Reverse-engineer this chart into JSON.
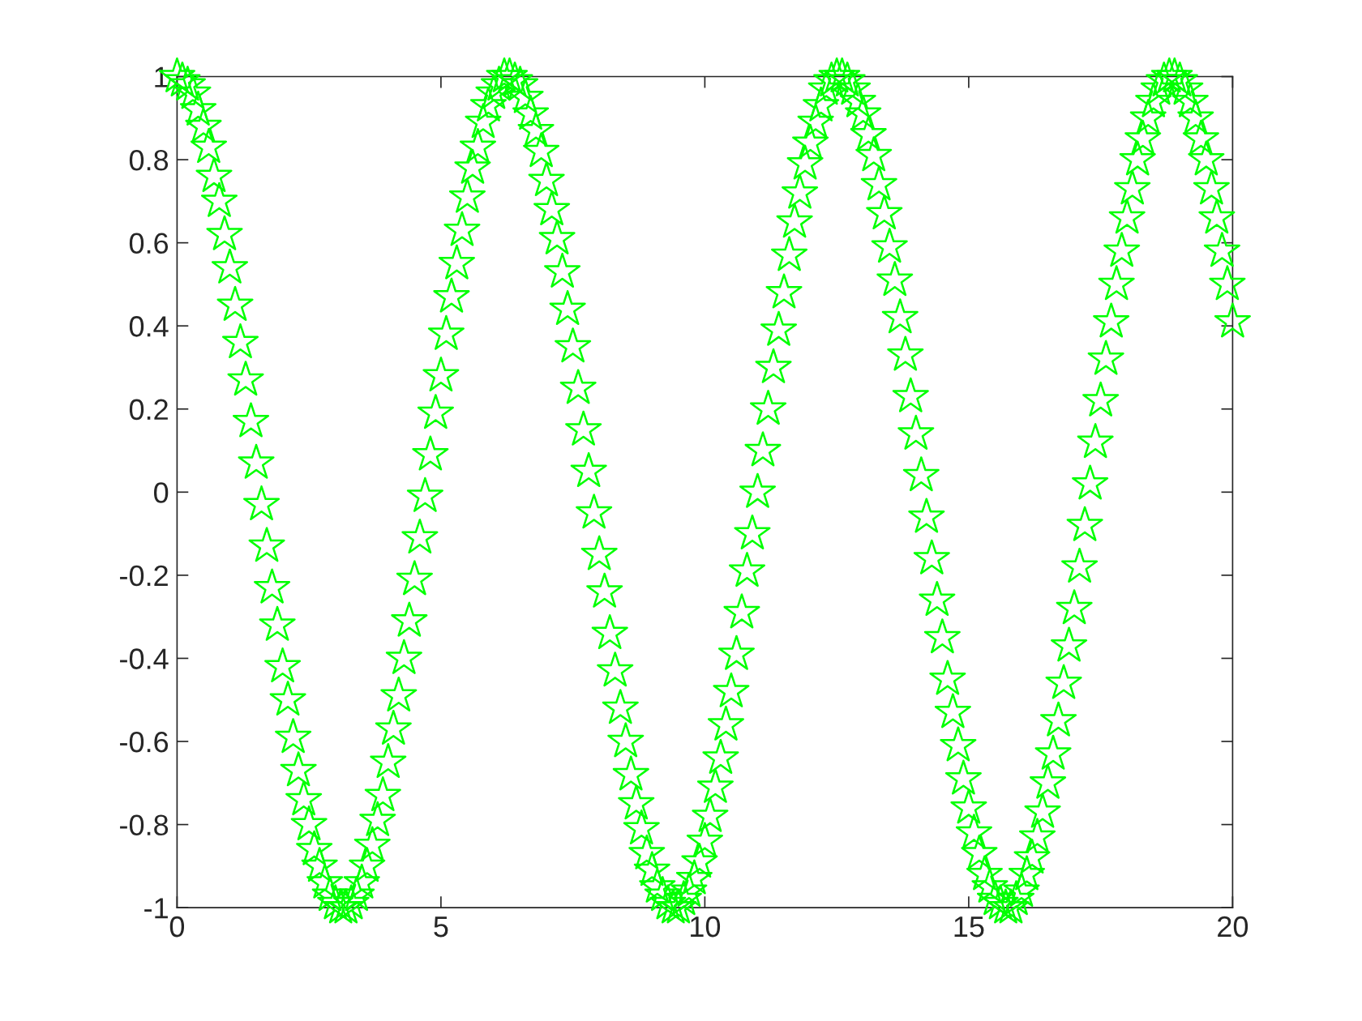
{
  "chart_data": {
    "type": "scatter",
    "marker": "star",
    "grid": false,
    "legend": false,
    "xlim": [
      0,
      20
    ],
    "xticks": [
      0,
      5,
      10,
      15,
      20
    ],
    "ylim": [
      -1,
      1
    ],
    "yticks": [
      -1,
      -0.8,
      -0.6,
      -0.4,
      -0.2,
      0,
      0.2,
      0.4,
      0.6,
      0.8,
      1
    ],
    "x": [
      0,
      0.1,
      0.2,
      0.3,
      0.4,
      0.5,
      0.6,
      0.7,
      0.8,
      0.9,
      1,
      1.1,
      1.2,
      1.3,
      1.4,
      1.5,
      1.6,
      1.7,
      1.8,
      1.9,
      2,
      2.1,
      2.2,
      2.3,
      2.4,
      2.5,
      2.6,
      2.7,
      2.8,
      2.9,
      3,
      3.1,
      3.2,
      3.3,
      3.4,
      3.5,
      3.6,
      3.7,
      3.8,
      3.9,
      4,
      4.1,
      4.2,
      4.3,
      4.4,
      4.5,
      4.6,
      4.7,
      4.8,
      4.9,
      5,
      5.1,
      5.2,
      5.3,
      5.4,
      5.5,
      5.6,
      5.7,
      5.8,
      5.9,
      6,
      6.1,
      6.2,
      6.3,
      6.4,
      6.5,
      6.6,
      6.7,
      6.8,
      6.9,
      7,
      7.1,
      7.2,
      7.3,
      7.4,
      7.5,
      7.6,
      7.7,
      7.8,
      7.9,
      8,
      8.1,
      8.2,
      8.3,
      8.4,
      8.5,
      8.6,
      8.7,
      8.8,
      8.9,
      9,
      9.1,
      9.2,
      9.3,
      9.4,
      9.5,
      9.6,
      9.7,
      9.8,
      9.9,
      10,
      10.1,
      10.2,
      10.3,
      10.4,
      10.5,
      10.6,
      10.7,
      10.8,
      10.9,
      11,
      11.1,
      11.2,
      11.3,
      11.4,
      11.5,
      11.6,
      11.7,
      11.8,
      11.9,
      12,
      12.1,
      12.2,
      12.3,
      12.4,
      12.5,
      12.6,
      12.7,
      12.8,
      12.9,
      13,
      13.1,
      13.2,
      13.3,
      13.4,
      13.5,
      13.6,
      13.7,
      13.8,
      13.9,
      14,
      14.1,
      14.2,
      14.3,
      14.4,
      14.5,
      14.6,
      14.7,
      14.8,
      14.9,
      15,
      15.1,
      15.2,
      15.3,
      15.4,
      15.5,
      15.6,
      15.7,
      15.8,
      15.9,
      16,
      16.1,
      16.2,
      16.3,
      16.4,
      16.5,
      16.6,
      16.7,
      16.8,
      16.9,
      17,
      17.1,
      17.2,
      17.3,
      17.4,
      17.5,
      17.6,
      17.7,
      17.8,
      17.9,
      18,
      18.1,
      18.2,
      18.3,
      18.4,
      18.5,
      18.6,
      18.7,
      18.8,
      18.9,
      19,
      19.1,
      19.2,
      19.3,
      19.4,
      19.5,
      19.6,
      19.7,
      19.8,
      19.9,
      20
    ],
    "series": [
      {
        "color": "#00ff00",
        "values": [
          1.0,
          0.99,
          0.98,
          0.96,
          0.92,
          0.88,
          0.83,
          0.76,
          0.7,
          0.62,
          0.54,
          0.45,
          0.36,
          0.27,
          0.17,
          0.07,
          -0.03,
          -0.13,
          -0.23,
          -0.32,
          -0.42,
          -0.5,
          -0.59,
          -0.67,
          -0.74,
          -0.8,
          -0.86,
          -0.9,
          -0.94,
          -0.97,
          -0.99,
          -1.0,
          -1.0,
          -0.99,
          -0.97,
          -0.94,
          -0.9,
          -0.85,
          -0.79,
          -0.73,
          -0.65,
          -0.57,
          -0.49,
          -0.4,
          -0.31,
          -0.21,
          -0.11,
          -0.01,
          0.09,
          0.19,
          0.28,
          0.38,
          0.47,
          0.55,
          0.63,
          0.71,
          0.78,
          0.83,
          0.89,
          0.93,
          0.96,
          0.98,
          1.0,
          1.0,
          0.99,
          0.98,
          0.95,
          0.91,
          0.87,
          0.82,
          0.75,
          0.68,
          0.61,
          0.53,
          0.44,
          0.35,
          0.25,
          0.15,
          0.05,
          -0.05,
          -0.15,
          -0.24,
          -0.34,
          -0.43,
          -0.52,
          -0.6,
          -0.68,
          -0.75,
          -0.81,
          -0.87,
          -0.91,
          -0.95,
          -0.97,
          -0.99,
          -1.0,
          -1.0,
          -0.98,
          -0.96,
          -0.93,
          -0.89,
          -0.84,
          -0.78,
          -0.71,
          -0.64,
          -0.56,
          -0.48,
          -0.39,
          -0.29,
          -0.19,
          -0.1,
          0.0,
          0.1,
          0.2,
          0.3,
          0.39,
          0.48,
          0.57,
          0.65,
          0.72,
          0.79,
          0.84,
          0.89,
          0.93,
          0.97,
          0.99,
          1.0,
          1.0,
          0.99,
          0.97,
          0.94,
          0.91,
          0.86,
          0.81,
          0.74,
          0.67,
          0.59,
          0.51,
          0.42,
          0.33,
          0.23,
          0.14,
          0.04,
          -0.06,
          -0.16,
          -0.26,
          -0.35,
          -0.45,
          -0.53,
          -0.61,
          -0.69,
          -0.76,
          -0.82,
          -0.87,
          -0.92,
          -0.95,
          -0.98,
          -0.99,
          -1.0,
          -1.0,
          -0.98,
          -0.96,
          -0.92,
          -0.88,
          -0.83,
          -0.77,
          -0.7,
          -0.63,
          -0.55,
          -0.46,
          -0.37,
          -0.28,
          -0.18,
          -0.08,
          0.02,
          0.12,
          0.22,
          0.32,
          0.41,
          0.5,
          0.58,
          0.66,
          0.73,
          0.8,
          0.85,
          0.9,
          0.94,
          0.97,
          0.99,
          1.0,
          1.0,
          0.99,
          0.97,
          0.94,
          0.9,
          0.85,
          0.8,
          0.73,
          0.66,
          0.58,
          0.5,
          0.41
        ]
      }
    ]
  }
}
